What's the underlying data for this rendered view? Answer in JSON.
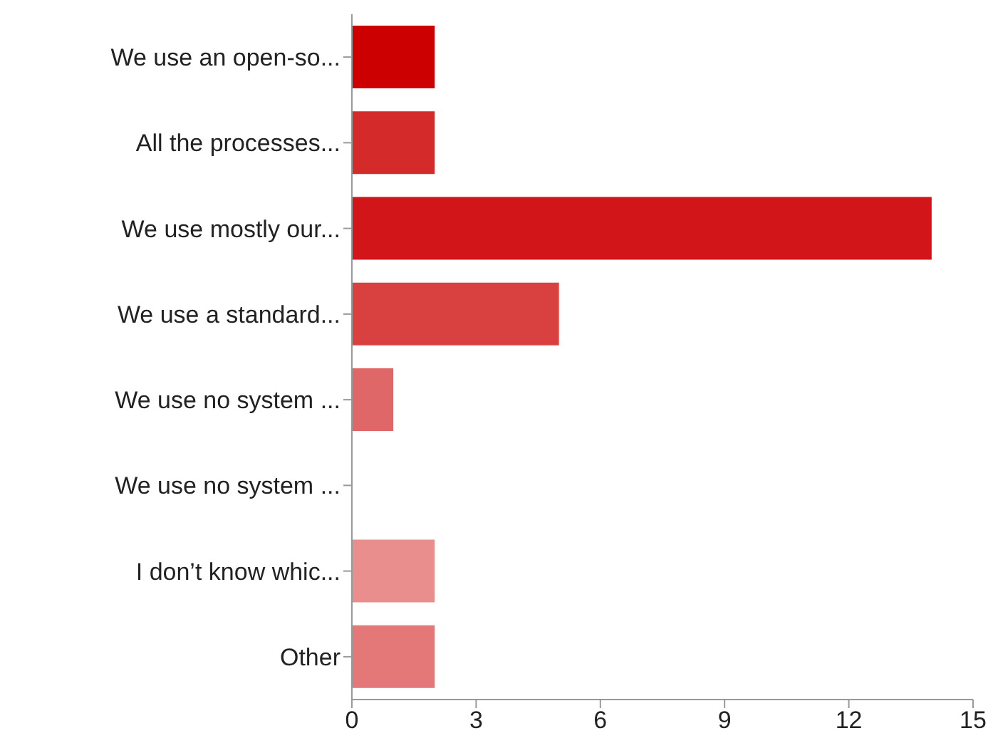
{
  "chart_data": {
    "type": "bar",
    "orientation": "horizontal",
    "categories": [
      "We use an open-so...",
      "All the processes...",
      "We use mostly our...",
      "We use a standard...",
      "We use no system ...",
      "We use no system ...",
      "I don’t know whic...",
      "Other"
    ],
    "values": [
      2,
      2,
      14,
      5,
      1,
      0,
      2,
      2
    ],
    "colors": [
      "#cc0000",
      "#d52a2a",
      "#d11518",
      "#d94040",
      "#e06767",
      "#e45555",
      "#e98d8d",
      "#e47878"
    ],
    "xlim": [
      0,
      15
    ],
    "xticks": [
      0,
      3,
      6,
      9,
      12,
      15
    ],
    "grid": false,
    "legend": false
  }
}
